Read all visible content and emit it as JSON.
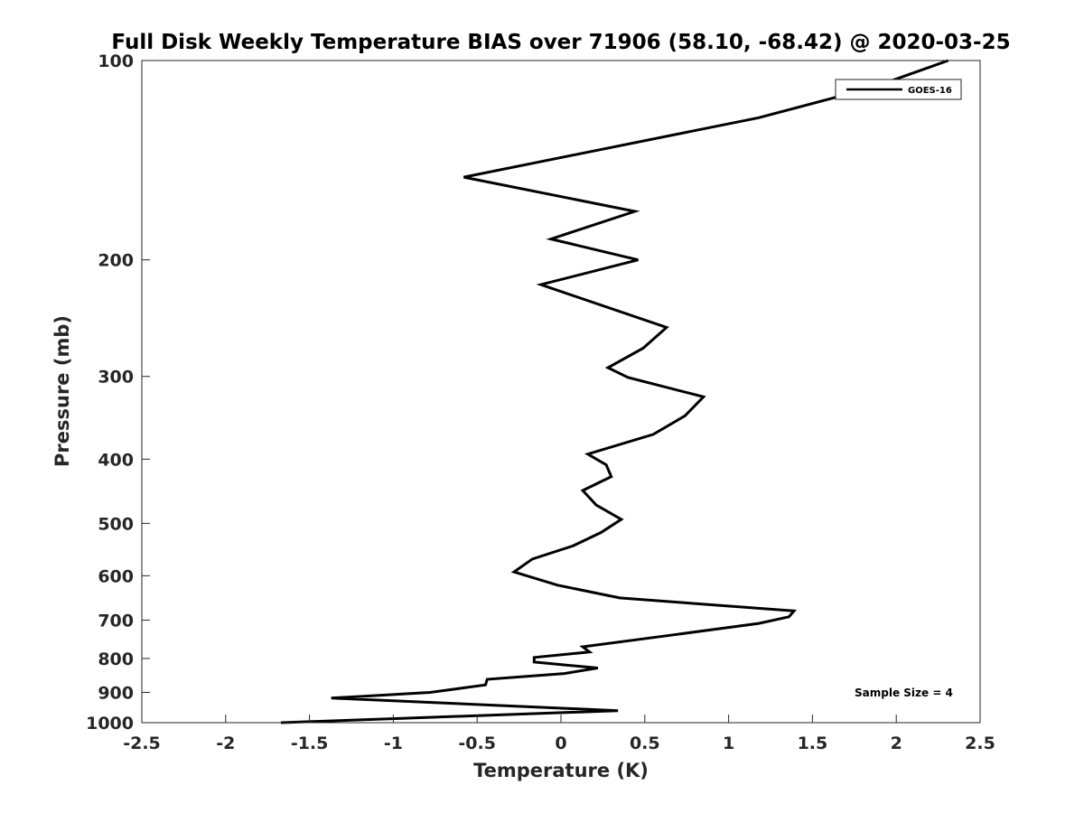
{
  "chart_data": {
    "type": "line",
    "title": "Full Disk Weekly Temperature BIAS over 71906 (58.10, -68.42) @ 2020-03-25",
    "xlabel": "Temperature (K)",
    "ylabel": "Pressure (mb)",
    "xlim": [
      -2.5,
      2.5
    ],
    "ylim": [
      100,
      1000
    ],
    "y_scale": "log",
    "y_reversed": true,
    "x_ticks": [
      -2.5,
      -2,
      -1.5,
      -1,
      -0.5,
      0,
      0.5,
      1,
      1.5,
      2,
      2.5
    ],
    "x_tick_labels": [
      "-2.5",
      "-2",
      "-1.5",
      "-1",
      "-0.5",
      "0",
      "0.5",
      "1",
      "1.5",
      "2",
      "2.5"
    ],
    "y_ticks": [
      100,
      200,
      300,
      400,
      500,
      600,
      700,
      800,
      900,
      1000
    ],
    "y_tick_labels": [
      "100",
      "200",
      "300",
      "400",
      "500",
      "600",
      "700",
      "800",
      "900",
      "1000"
    ],
    "grid": false,
    "legend_position": "top-right",
    "series": [
      {
        "name": "GOES-16",
        "color": "#000000",
        "points": [
          {
            "x": 2.31,
            "y": 100
          },
          {
            "x": 1.85,
            "y": 110
          },
          {
            "x": 1.18,
            "y": 122
          },
          {
            "x": -0.58,
            "y": 150
          },
          {
            "x": 0.44,
            "y": 169
          },
          {
            "x": -0.06,
            "y": 186
          },
          {
            "x": 0.46,
            "y": 200
          },
          {
            "x": -0.12,
            "y": 218
          },
          {
            "x": 0.63,
            "y": 253
          },
          {
            "x": 0.49,
            "y": 272
          },
          {
            "x": 0.28,
            "y": 291
          },
          {
            "x": 0.4,
            "y": 301
          },
          {
            "x": 0.85,
            "y": 322
          },
          {
            "x": 0.74,
            "y": 344
          },
          {
            "x": 0.55,
            "y": 367
          },
          {
            "x": 0.16,
            "y": 393
          },
          {
            "x": 0.27,
            "y": 408
          },
          {
            "x": 0.3,
            "y": 425
          },
          {
            "x": 0.13,
            "y": 446
          },
          {
            "x": 0.21,
            "y": 469
          },
          {
            "x": 0.36,
            "y": 493
          },
          {
            "x": 0.24,
            "y": 516
          },
          {
            "x": 0.07,
            "y": 541
          },
          {
            "x": -0.17,
            "y": 566
          },
          {
            "x": -0.28,
            "y": 592
          },
          {
            "x": -0.02,
            "y": 620
          },
          {
            "x": 0.35,
            "y": 648
          },
          {
            "x": 1.39,
            "y": 678
          },
          {
            "x": 1.36,
            "y": 692
          },
          {
            "x": 1.18,
            "y": 708
          },
          {
            "x": 0.65,
            "y": 738
          },
          {
            "x": 0.13,
            "y": 768
          },
          {
            "x": 0.17,
            "y": 782
          },
          {
            "x": -0.16,
            "y": 797
          },
          {
            "x": -0.16,
            "y": 810
          },
          {
            "x": 0.22,
            "y": 827
          },
          {
            "x": 0.02,
            "y": 843
          },
          {
            "x": -0.44,
            "y": 860
          },
          {
            "x": -0.45,
            "y": 877
          },
          {
            "x": -0.78,
            "y": 900
          },
          {
            "x": -1.37,
            "y": 918
          },
          {
            "x": 0.34,
            "y": 959
          },
          {
            "x": -0.95,
            "y": 985
          },
          {
            "x": -1.67,
            "y": 1000
          }
        ]
      }
    ],
    "annotation": "Sample Size = 4"
  }
}
